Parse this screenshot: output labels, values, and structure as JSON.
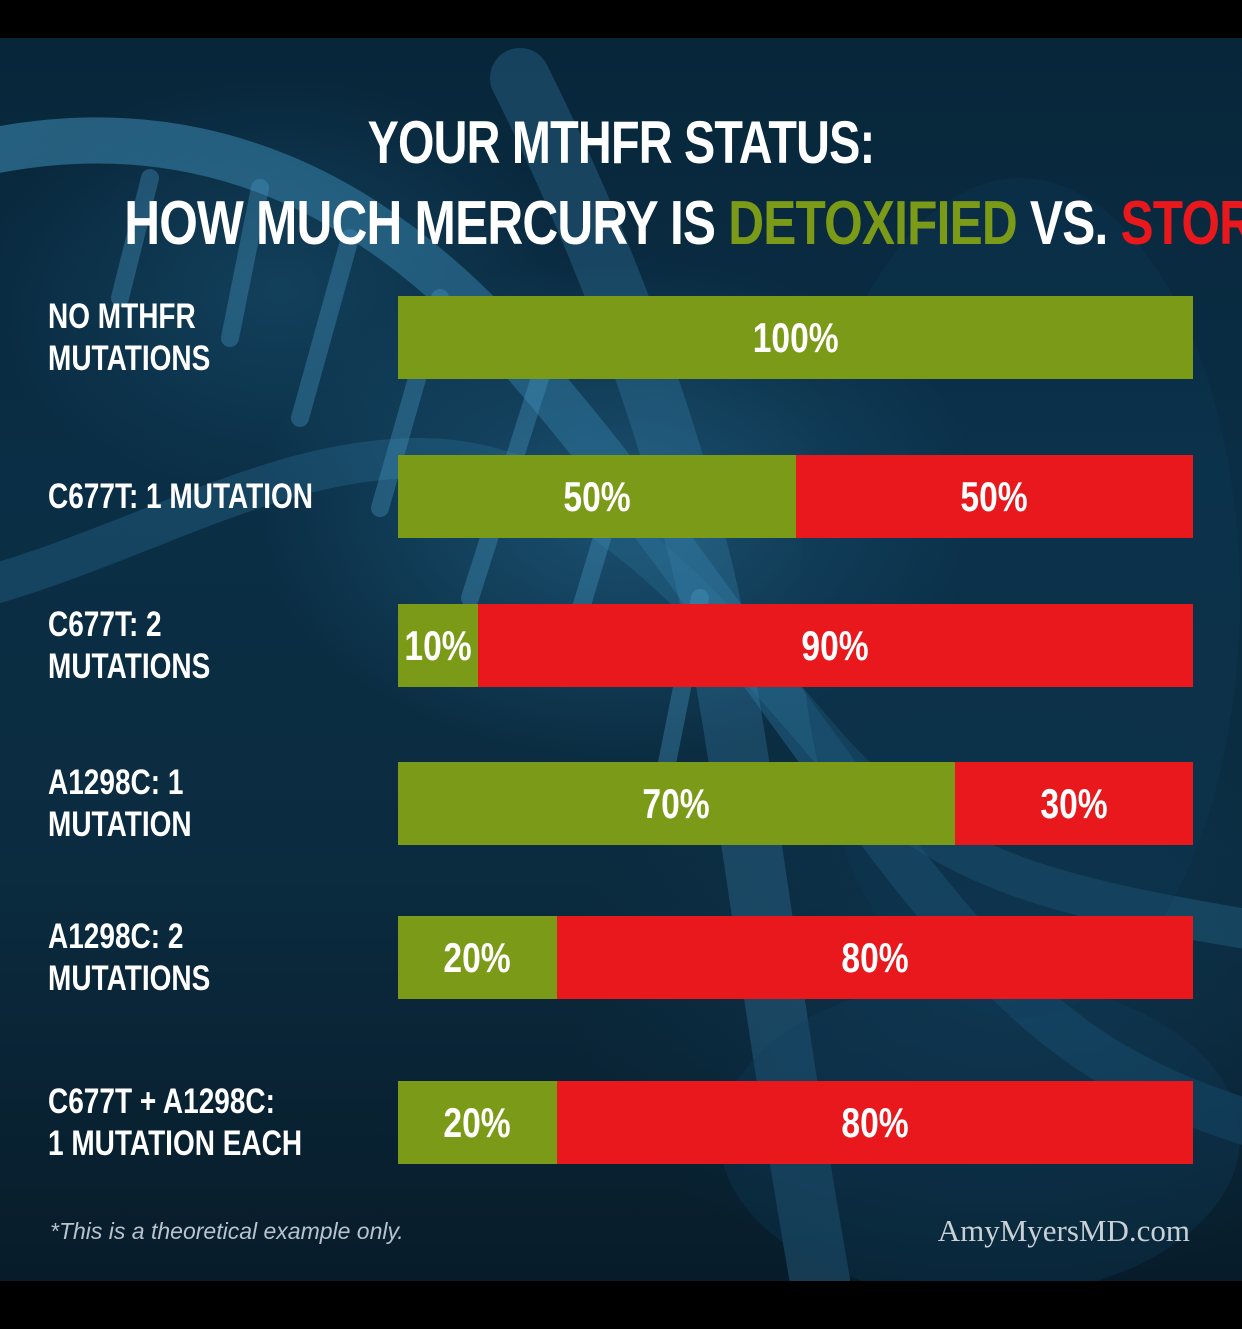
{
  "title": {
    "line1": "YOUR MTHFR STATUS:",
    "line2_pre": "HOW MUCH MERCURY IS ",
    "line2_detox": "DETOXIFIED",
    "line2_mid": " VS. ",
    "line2_stored": "STORED?",
    "line2_mark": "*"
  },
  "colors": {
    "detoxified": "#7b9a17",
    "stored": "#e8181c",
    "background": "#0a2e45"
  },
  "chart_data": {
    "type": "bar",
    "orientation": "horizontal",
    "stacked": true,
    "categories": [
      "NO MTHFR MUTATIONS",
      "C677T: 1 MUTATION",
      "C677T: 2 MUTATIONS",
      "A1298C: 1 MUTATION",
      "A1298C: 2 MUTATIONS",
      "C677T + A1298C:\n1 MUTATION EACH"
    ],
    "series": [
      {
        "name": "DETOXIFIED",
        "color": "#7b9a17",
        "values": [
          100,
          50,
          10,
          70,
          20,
          20
        ]
      },
      {
        "name": "STORED",
        "color": "#e8181c",
        "values": [
          0,
          50,
          90,
          30,
          80,
          80
        ]
      }
    ],
    "value_suffix": "%",
    "xlim": [
      0,
      100
    ],
    "grid": false
  },
  "footnote": "*This is a theoretical example only.",
  "brand": "AmyMyersMD.com"
}
